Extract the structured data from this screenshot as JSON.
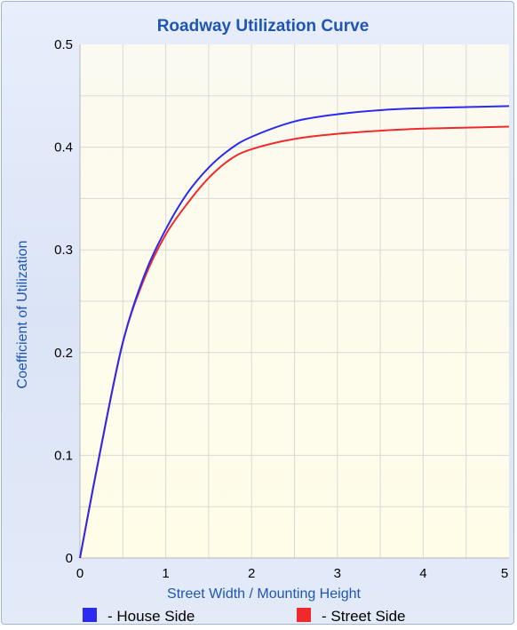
{
  "chart_data": {
    "type": "line",
    "title": "Roadway Utilization Curve",
    "xlabel": "Street Width / Mounting Height",
    "ylabel": "Coefficient of Utilization",
    "xlim": [
      0,
      5
    ],
    "ylim": [
      0,
      0.5
    ],
    "x_ticks": [
      "0",
      "1",
      "2",
      "3",
      "4",
      "5"
    ],
    "y_ticks": [
      "0",
      "0.1",
      "0.2",
      "0.3",
      "0.4",
      "0.5"
    ],
    "grid": true,
    "legend_position": "bottom",
    "x": [
      0,
      0.25,
      0.5,
      0.75,
      1.0,
      1.25,
      1.5,
      1.75,
      2.0,
      2.5,
      3.0,
      3.5,
      4.0,
      4.5,
      5.0
    ],
    "series": [
      {
        "name": "- House Side",
        "color": "#2a2af0",
        "values": [
          0.0,
          0.11,
          0.21,
          0.275,
          0.32,
          0.355,
          0.38,
          0.398,
          0.41,
          0.425,
          0.432,
          0.436,
          0.438,
          0.439,
          0.44
        ]
      },
      {
        "name": "- Street Side",
        "color": "#f02a2a",
        "values": [
          0.0,
          0.11,
          0.21,
          0.272,
          0.315,
          0.345,
          0.37,
          0.388,
          0.398,
          0.408,
          0.413,
          0.416,
          0.418,
          0.419,
          0.42
        ]
      }
    ]
  }
}
